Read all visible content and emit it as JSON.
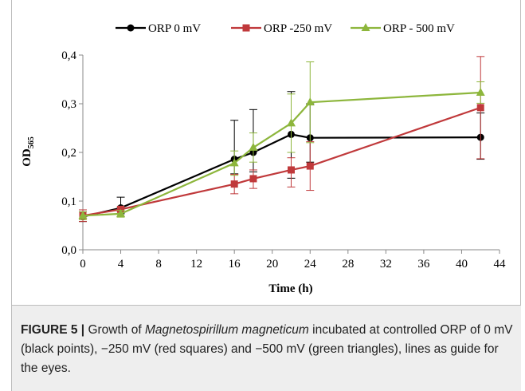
{
  "chart_data": {
    "type": "line",
    "title": "",
    "xlabel": "Time (h)",
    "ylabel_main": "OD",
    "ylabel_sub": "565",
    "xlim": [
      0,
      44
    ],
    "ylim": [
      0,
      0.4
    ],
    "xticks": [
      0,
      4,
      8,
      12,
      16,
      20,
      24,
      28,
      32,
      36,
      40,
      44
    ],
    "yticks": [
      0.0,
      0.1,
      0.2,
      0.3,
      0.4
    ],
    "ytick_labels": [
      "0,0",
      "0,1",
      "0,2",
      "0,3",
      "0,4"
    ],
    "grid": false,
    "legend_position": "top",
    "series": [
      {
        "name": "ORP 0 mV",
        "color": "#000000",
        "marker": "circle",
        "x": [
          0,
          4,
          16,
          18,
          22,
          24,
          42
        ],
        "y": [
          0.068,
          0.086,
          0.186,
          0.2,
          0.237,
          0.23,
          0.231
        ],
        "err_up": [
          0.01,
          0.022,
          0.08,
          0.088,
          0.088,
          0.07,
          0.05
        ],
        "err_down": [
          0.01,
          0.012,
          0.03,
          0.04,
          0.09,
          0.05,
          0.045
        ]
      },
      {
        "name": "ORP -250 mV",
        "color": "#c0393b",
        "marker": "square",
        "x": [
          0,
          4,
          16,
          18,
          22,
          24,
          42
        ],
        "y": [
          0.07,
          0.083,
          0.135,
          0.146,
          0.164,
          0.172,
          0.292
        ],
        "err_up": [
          0.012,
          0.005,
          0.02,
          0.018,
          0.025,
          0.05,
          0.105
        ],
        "err_down": [
          0.012,
          0.005,
          0.02,
          0.02,
          0.035,
          0.05,
          0.105
        ]
      },
      {
        "name": "ORP - 500 mV",
        "color": "#8db63c",
        "marker": "triangle",
        "x": [
          0,
          4,
          16,
          18,
          22,
          24,
          42
        ],
        "y": [
          0.07,
          0.074,
          0.178,
          0.21,
          0.26,
          0.303,
          0.323
        ],
        "err_up": [
          0.008,
          0.007,
          0.025,
          0.03,
          0.06,
          0.083,
          0.022
        ],
        "err_down": [
          0.008,
          0.007,
          0.025,
          0.03,
          0.06,
          0.083,
          0.022
        ]
      }
    ]
  },
  "caption": {
    "figure_label": "FIGURE 5 |",
    "text_1": " Growth of ",
    "species": "Magnetospirillum magneticum",
    "text_2": " incubated at controlled ORP of 0 mV (black points), −250 mV (red squares) and −500 mV (green triangles), lines as guide for the eyes."
  }
}
